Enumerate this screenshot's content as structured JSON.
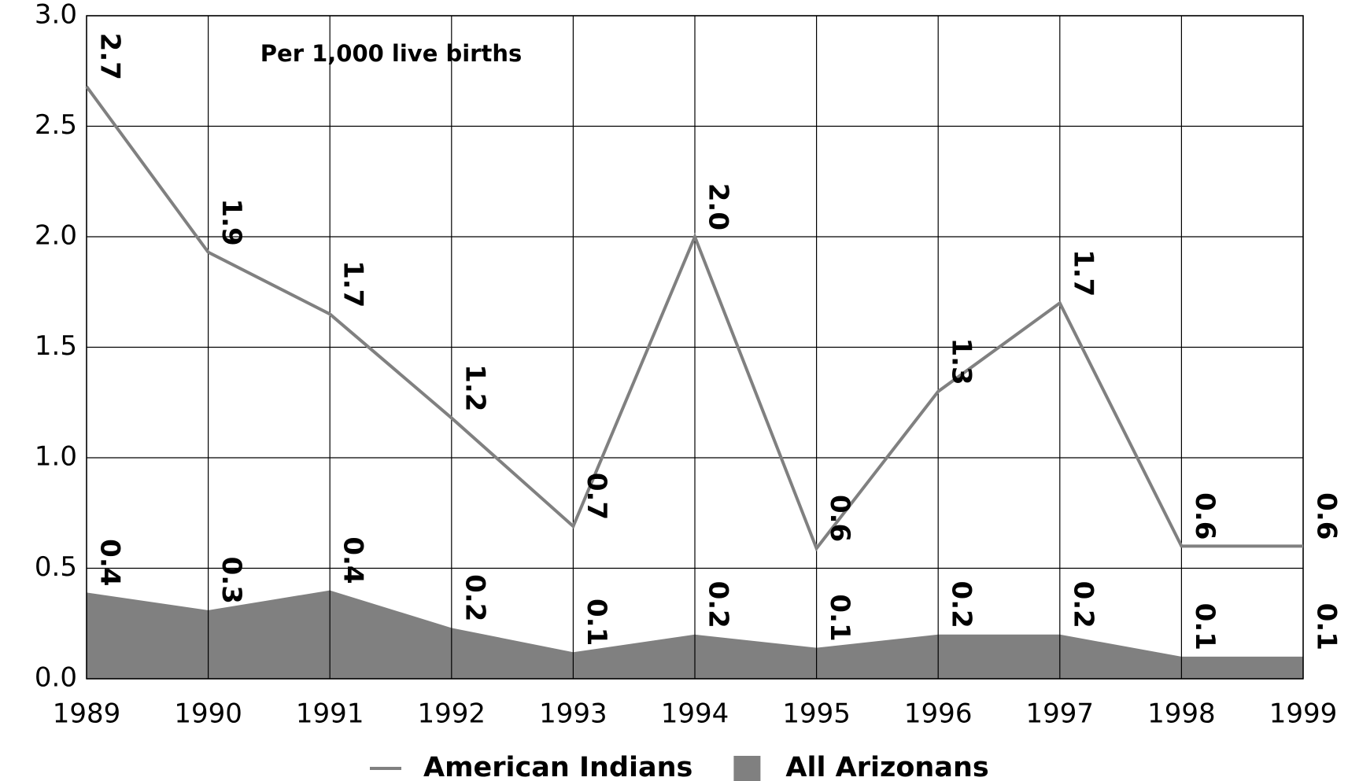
{
  "chart_data": {
    "type": "line",
    "annotation": "Per 1,000 live births",
    "x": [
      1989,
      1990,
      1991,
      1992,
      1993,
      1994,
      1995,
      1996,
      1997,
      1998,
      1999
    ],
    "xlim": [
      1989,
      1999
    ],
    "xticks": [
      1989,
      1990,
      1991,
      1992,
      1993,
      1994,
      1995,
      1996,
      1997,
      1998,
      1999
    ],
    "ylim": [
      0,
      3
    ],
    "yticks": [
      {
        "value": 0,
        "label": "0.0"
      },
      0.5,
      {
        "value": 1,
        "label": "1.0"
      },
      1.5,
      {
        "value": 2,
        "label": "2.0"
      },
      2.5,
      {
        "value": 3,
        "label": "3.0"
      }
    ],
    "grid": true,
    "legend": "bottom",
    "series": [
      {
        "name": "American Indians",
        "kind": "line",
        "color": "#808080",
        "values": [
          2.68,
          1.93,
          1.65,
          1.18,
          0.69,
          2.0,
          0.59,
          1.3,
          1.7,
          0.6,
          0.6
        ],
        "value_labels": [
          "2.7",
          "1.9",
          "1.7",
          "1.2",
          "0.7",
          "2.0",
          "0.6",
          "1.3",
          "1.7",
          "0.6",
          "0.6"
        ]
      },
      {
        "name": "All Arizonans",
        "kind": "area",
        "color": "#808080",
        "values": [
          0.39,
          0.31,
          0.4,
          0.23,
          0.12,
          0.2,
          0.14,
          0.2,
          0.2,
          0.1,
          0.1
        ],
        "value_labels": [
          "0.4",
          "0.3",
          "0.4",
          "0.2",
          "0.1",
          "0.2",
          "0.1",
          "0.2",
          "0.2",
          "0.1",
          "0.1"
        ]
      }
    ]
  }
}
